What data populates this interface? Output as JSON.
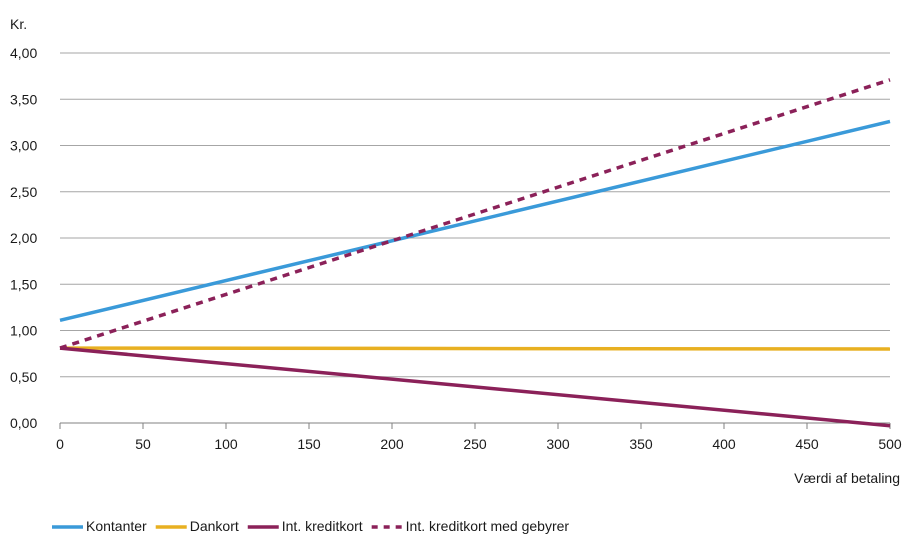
{
  "chart_data": {
    "type": "line",
    "ylabel": "Kr.",
    "xlabel": "Værdi af betaling",
    "xlim": [
      0,
      500
    ],
    "ylim": [
      0,
      4
    ],
    "x_ticks": [
      0,
      50,
      100,
      150,
      200,
      250,
      300,
      350,
      400,
      450,
      500
    ],
    "x_tick_labels": [
      "0",
      "50",
      "100",
      "150",
      "200",
      "250",
      "300",
      "350",
      "400",
      "450",
      "500"
    ],
    "y_ticks": [
      0,
      0.5,
      1,
      1.5,
      2,
      2.5,
      3,
      3.5,
      4
    ],
    "y_tick_labels": [
      "0,00",
      "0,50",
      "1,00",
      "1,50",
      "2,00",
      "2,50",
      "3,00",
      "3,50",
      "4,00"
    ],
    "grid": "horizontal",
    "legend_position": "bottom",
    "series": [
      {
        "name": "Kontanter",
        "color": "#3a9ad9",
        "dash": "solid",
        "x": [
          0,
          500
        ],
        "y": [
          1.11,
          3.26
        ]
      },
      {
        "name": "Dankort",
        "color": "#e8b021",
        "dash": "solid",
        "x": [
          0,
          500
        ],
        "y": [
          0.81,
          0.8
        ]
      },
      {
        "name": "Int. kreditkort",
        "color": "#8b2159",
        "dash": "solid",
        "x": [
          0,
          500
        ],
        "y": [
          0.81,
          -0.03
        ]
      },
      {
        "name": "Int. kreditkort med gebyrer",
        "color": "#8b2159",
        "dash": "dashed",
        "x": [
          0,
          500
        ],
        "y": [
          0.81,
          3.71
        ]
      }
    ]
  }
}
